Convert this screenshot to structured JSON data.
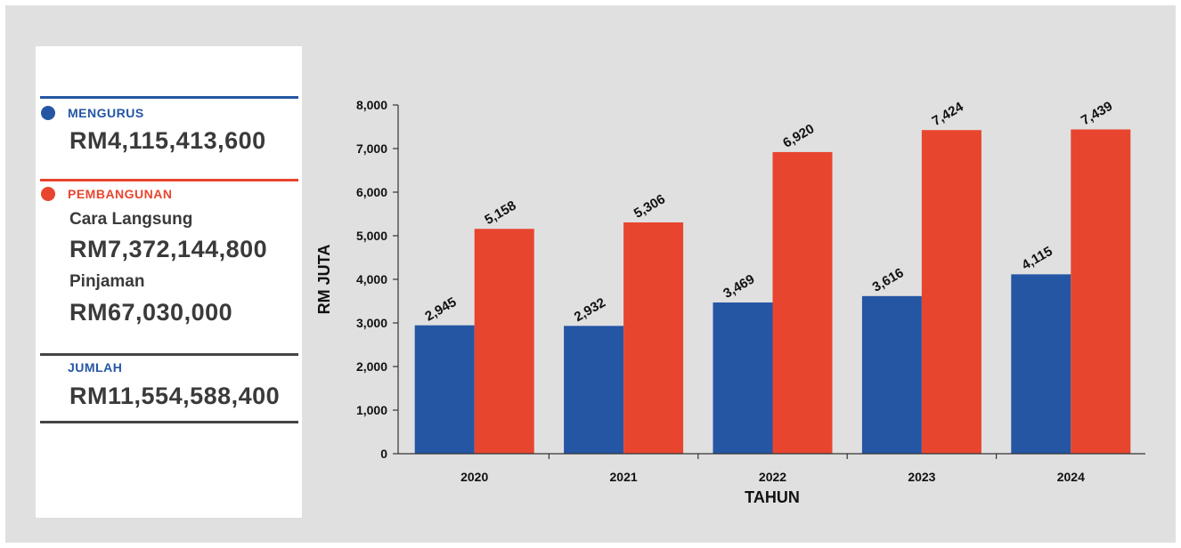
{
  "colors": {
    "mengurus": "#2456a4",
    "pembangunan": "#e8452f",
    "background": "#e0e0e0"
  },
  "panel": {
    "mengurus": {
      "label": "MENGURUS",
      "amount": "RM4,115,413,600"
    },
    "pembangunan": {
      "label": "PEMBANGUNAN",
      "cara_langsung_label": "Cara Langsung",
      "cara_langsung_amount": "RM7,372,144,800",
      "pinjaman_label": "Pinjaman",
      "pinjaman_amount": "RM67,030,000"
    },
    "jumlah": {
      "label": "JUMLAH",
      "amount": "RM11,554,588,400"
    }
  },
  "chart_data": {
    "type": "bar",
    "categories": [
      "2020",
      "2021",
      "2022",
      "2023",
      "2024"
    ],
    "series": [
      {
        "name": "MENGURUS",
        "values": [
          2945,
          2932,
          3469,
          3616,
          4115
        ],
        "labels": [
          "2,945",
          "2,932",
          "3,469",
          "3,616",
          "4,115"
        ]
      },
      {
        "name": "PEMBANGUNAN",
        "values": [
          5158,
          5306,
          6920,
          7424,
          7439
        ],
        "labels": [
          "5,158",
          "5,306",
          "6,920",
          "7,424",
          "7,439"
        ]
      }
    ],
    "xlabel": "TAHUN",
    "ylabel": "RM JUTA",
    "ylim": [
      0,
      8000
    ],
    "yticks": [
      "0",
      "1,000",
      "2,000",
      "3,000",
      "4,000",
      "5,000",
      "6,000",
      "7,000",
      "8,000"
    ],
    "grid": false,
    "legend": "left panel"
  }
}
